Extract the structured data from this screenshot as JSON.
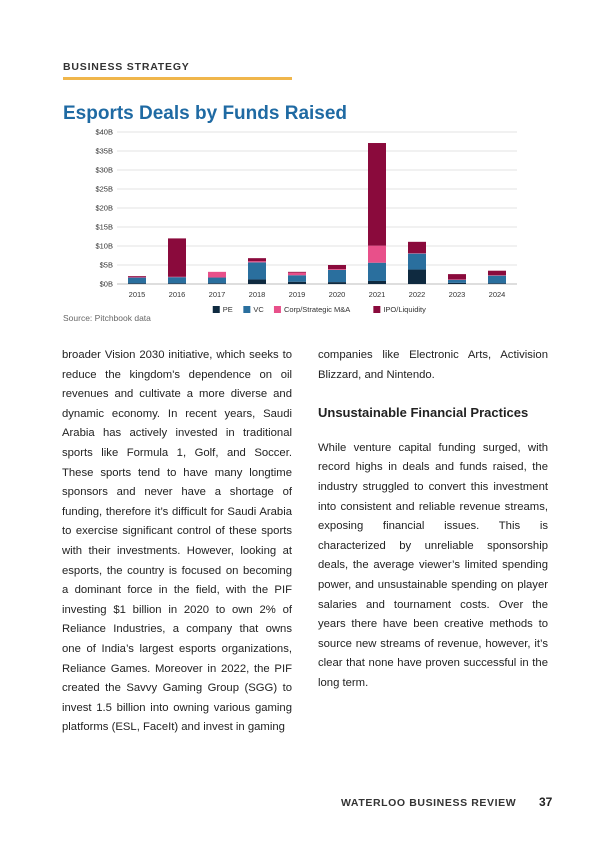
{
  "header": {
    "section": "BUSINESS STRATEGY"
  },
  "chart_data": {
    "type": "bar",
    "stacked": true,
    "title": "Esports Deals by Funds Raised",
    "categories": [
      "2015",
      "2016",
      "2017",
      "2018",
      "2019",
      "2020",
      "2021",
      "2022",
      "2023",
      "2024"
    ],
    "y_tick_labels": [
      "$0B",
      "$5B",
      "$10B",
      "$15B",
      "$20B",
      "$25B",
      "$30B",
      "$35B",
      "$40B"
    ],
    "ylim": [
      0,
      40
    ],
    "grid": true,
    "legend_position": "bottom",
    "series": [
      {
        "name": "PE",
        "color": "#0f2a40",
        "values": [
          0.2,
          0.2,
          0.2,
          1.2,
          0.6,
          0.5,
          0.8,
          3.8,
          0.3,
          0.2
        ]
      },
      {
        "name": "VC",
        "color": "#2a6f9e",
        "values": [
          1.5,
          1.6,
          1.5,
          4.5,
          1.7,
          3.2,
          4.8,
          4.2,
          0.8,
          2.0
        ]
      },
      {
        "name": "Corp/Strategic M&A",
        "color": "#e8508a",
        "values": [
          0.2,
          0.1,
          1.5,
          0.3,
          0.7,
          0.2,
          4.5,
          0.1,
          0.1,
          0.1
        ]
      },
      {
        "name": "IPO/Liquidity",
        "color": "#8a0a3c",
        "values": [
          0.2,
          10.1,
          0.0,
          0.8,
          0.2,
          1.1,
          27.0,
          3.0,
          1.4,
          1.2
        ]
      }
    ]
  },
  "source": "Source: Pitchbook data",
  "left_column": "broader Vision 2030 initiative, which seeks to reduce the kingdom's dependence on oil revenues and cultivate a more diverse and dynamic economy. In recent years, Saudi Arabia has actively invested in traditional sports like Formula 1, Golf, and Soccer. These sports tend to have many longtime sponsors and never have a shortage of funding, therefore it’s difficult for Saudi Arabia to exercise significant control of these sports with their investments. However, looking at esports, the country is focused on becoming a dominant force in the field, with the PIF investing $1 billion in 2020 to own 2% of Reliance Industries, a company that owns one of India’s largest esports organizations, Reliance Games. Moreover in 2022, the PIF created the Savvy Gaming Group (SGG) to invest 1.5 billion into owning various gaming platforms (ESL, FaceIt) and invest in gaming",
  "right_column": {
    "intro": "companies like Electronic Arts, Activision Blizzard, and Nintendo.",
    "heading": "Unsustainable Financial Practices",
    "body": "While venture capital funding surged, with record highs in deals and funds raised, the industry struggled to convert this investment into consistent and reliable revenue streams, exposing financial issues. This is characterized by unreliable sponsorship deals, the average viewer’s limited spending power, and unsustainable spending on player salaries and tournament costs. Over the years there have been creative methods to source new streams of revenue, however, it’s clear that none have proven successful in the long term."
  },
  "footer": {
    "publication": "WATERLOO BUSINESS REVIEW",
    "page": "37"
  }
}
